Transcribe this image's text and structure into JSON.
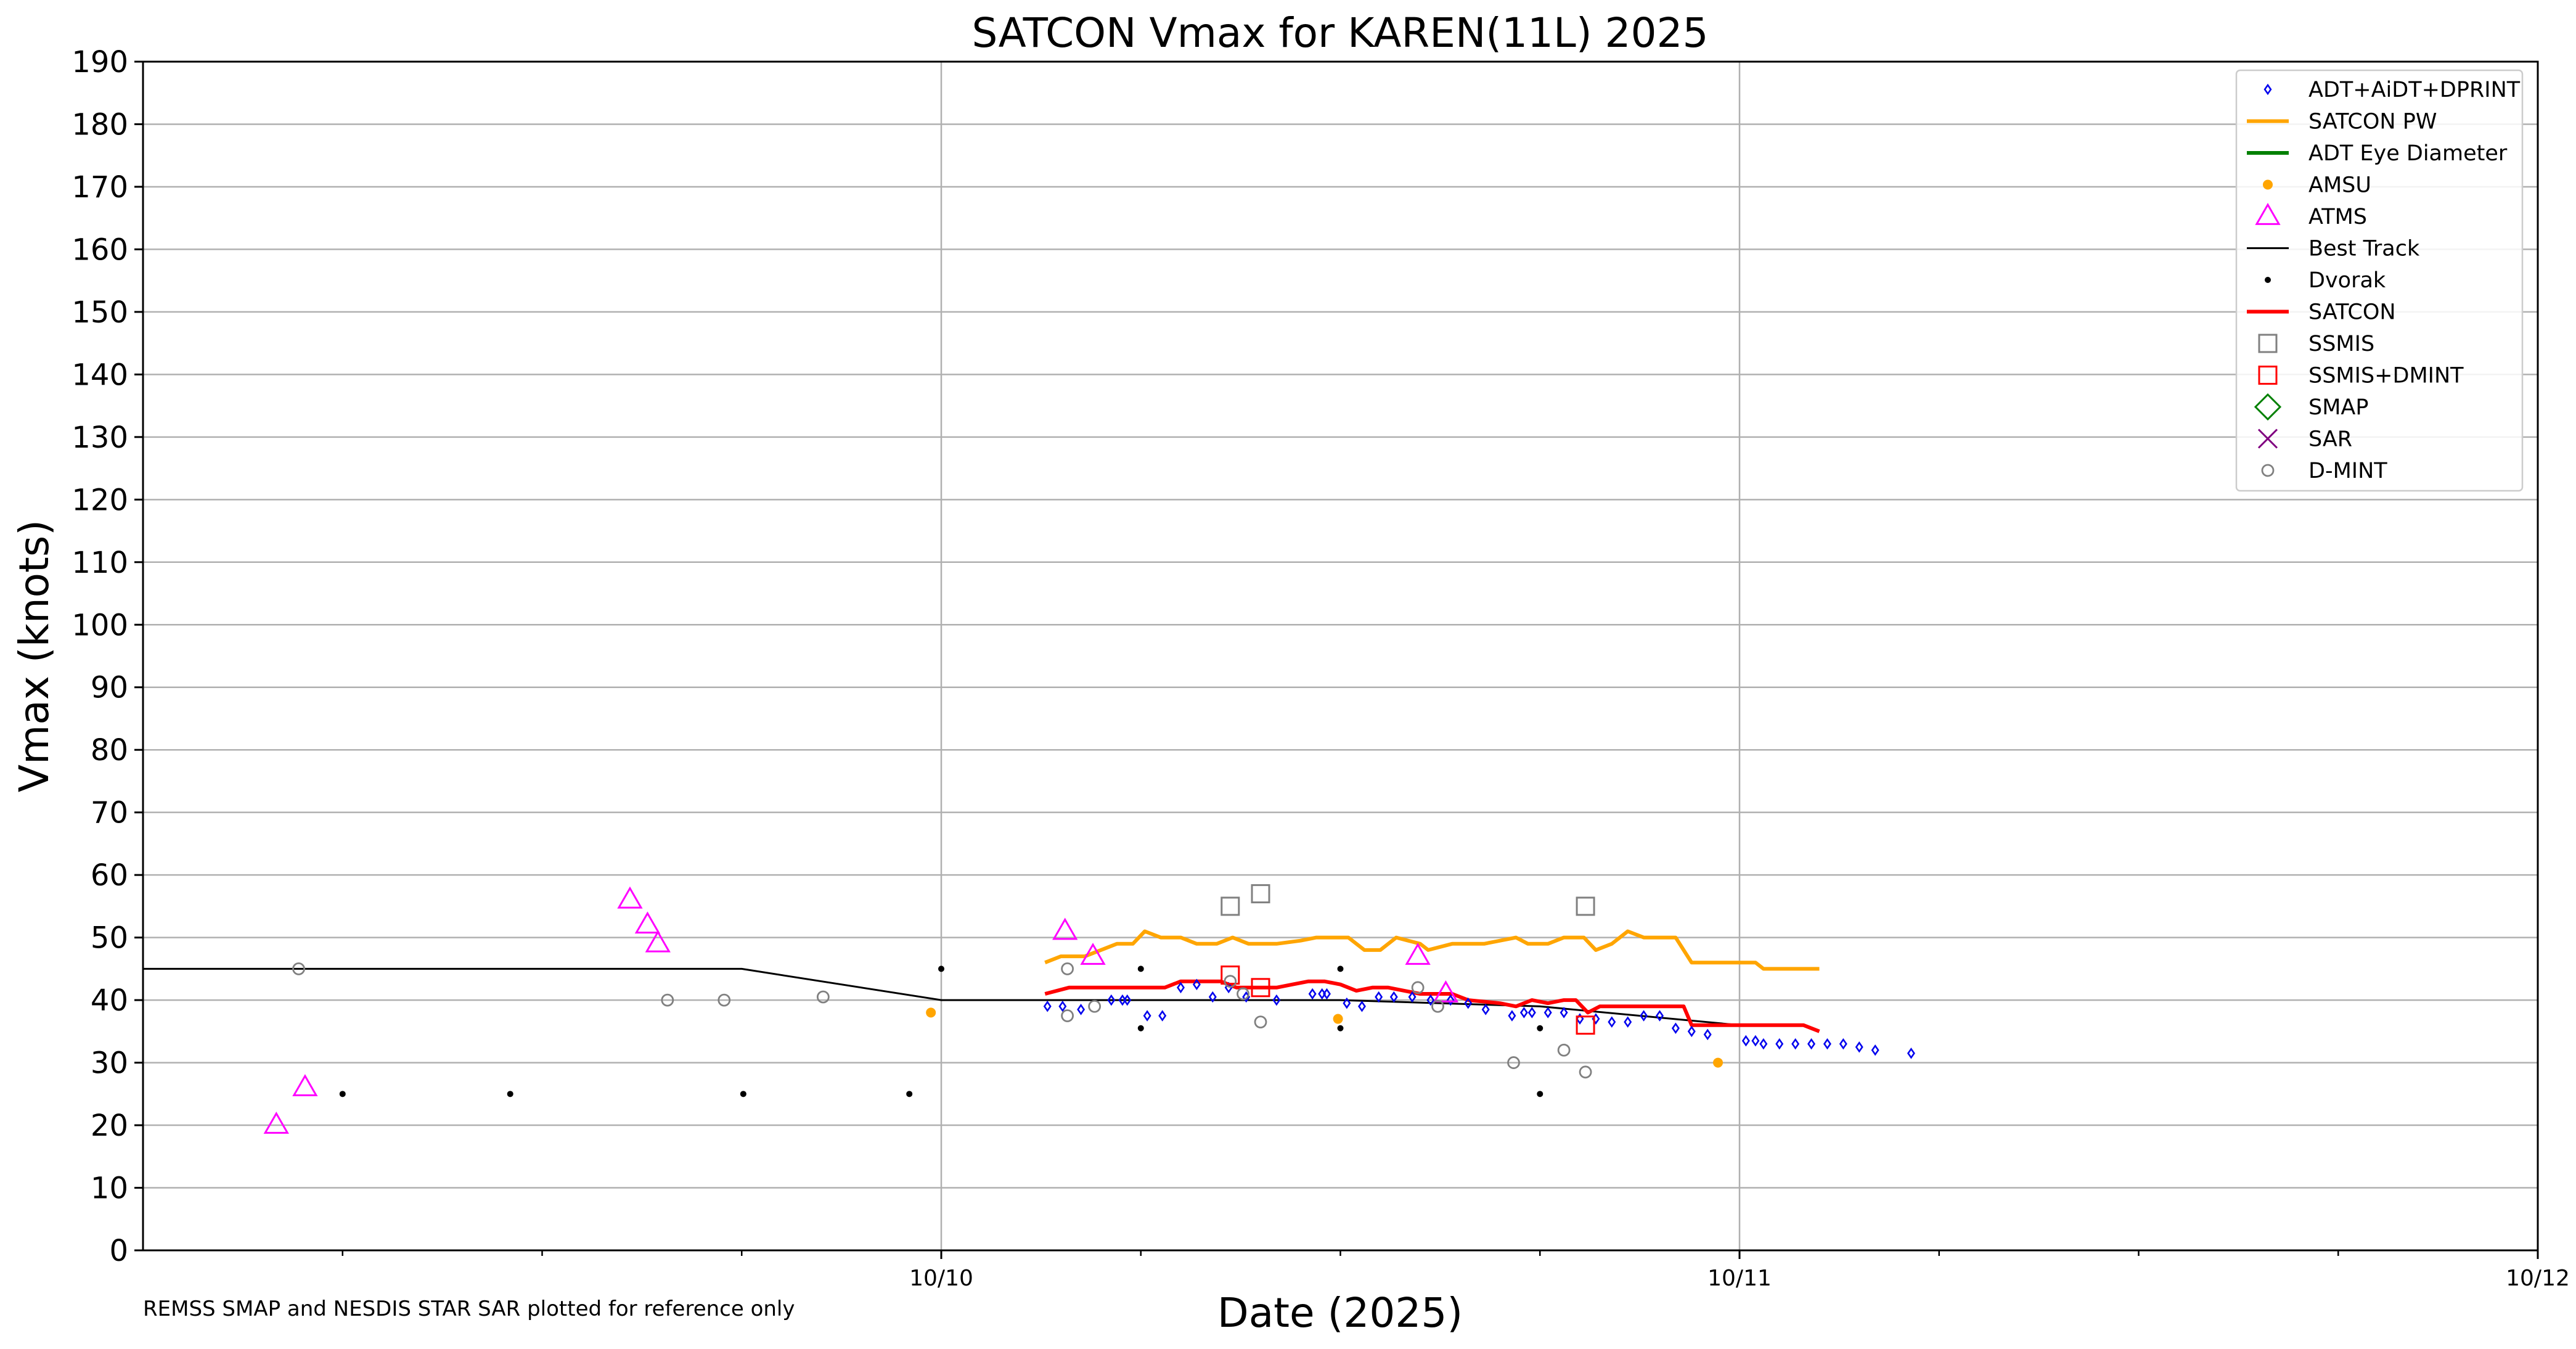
{
  "chart_data": {
    "type": "scatter",
    "title": "SATCON Vmax for KAREN(11L) 2025",
    "xlabel": "Date (2025)",
    "ylabel": "Vmax (knots)",
    "note": "REMSS SMAP and NESDIS STAR SAR plotted for reference only",
    "xlim": [
      -1.0,
      2.0
    ],
    "ylim": [
      0,
      190
    ],
    "yticks": [
      0,
      10,
      20,
      30,
      40,
      50,
      60,
      70,
      80,
      90,
      100,
      110,
      120,
      130,
      140,
      150,
      160,
      170,
      180,
      190
    ],
    "xticks": [
      {
        "x": 0,
        "label": "10/10"
      },
      {
        "x": 1,
        "label": "10/11"
      },
      {
        "x": 2,
        "label": "10/12"
      }
    ],
    "x_minor_ticks": [
      -0.75,
      -0.5,
      -0.25,
      0.25,
      0.5,
      0.75,
      1.25,
      1.5,
      1.75
    ],
    "x_units": "days relative to 10/10 00Z",
    "grid": true,
    "legend_position": "top-right",
    "series": [
      {
        "name": "ADT+AiDT+DPRINT",
        "kind": "diamond",
        "color": "#0000ee",
        "points": [
          [
            0.133,
            39
          ],
          [
            0.152,
            39
          ],
          [
            0.175,
            38.5
          ],
          [
            0.213,
            40
          ],
          [
            0.227,
            40
          ],
          [
            0.233,
            40
          ],
          [
            0.258,
            37.5
          ],
          [
            0.277,
            37.5
          ],
          [
            0.3,
            42
          ],
          [
            0.32,
            42.5
          ],
          [
            0.34,
            40.5
          ],
          [
            0.36,
            42
          ],
          [
            0.382,
            40.5
          ],
          [
            0.42,
            40
          ],
          [
            0.465,
            41
          ],
          [
            0.477,
            41
          ],
          [
            0.483,
            41
          ],
          [
            0.508,
            39.5
          ],
          [
            0.527,
            39
          ],
          [
            0.548,
            40.5
          ],
          [
            0.567,
            40.5
          ],
          [
            0.59,
            40.5
          ],
          [
            0.613,
            40
          ],
          [
            0.638,
            40
          ],
          [
            0.66,
            39.5
          ],
          [
            0.682,
            38.5
          ],
          [
            0.715,
            37.5
          ],
          [
            0.73,
            38
          ],
          [
            0.74,
            38
          ],
          [
            0.76,
            38
          ],
          [
            0.78,
            38
          ],
          [
            0.8,
            37
          ],
          [
            0.82,
            37
          ],
          [
            0.84,
            36.5
          ],
          [
            0.86,
            36.5
          ],
          [
            0.88,
            37.5
          ],
          [
            0.9,
            37.5
          ],
          [
            0.92,
            35.5
          ],
          [
            0.94,
            35
          ],
          [
            0.96,
            34.5
          ],
          [
            1.008,
            33.5
          ],
          [
            1.02,
            33.5
          ],
          [
            1.03,
            33
          ],
          [
            1.05,
            33
          ],
          [
            1.07,
            33
          ],
          [
            1.09,
            33
          ],
          [
            1.11,
            33
          ],
          [
            1.13,
            33
          ],
          [
            1.15,
            32.5
          ],
          [
            1.17,
            32
          ],
          [
            1.215,
            31.5
          ]
        ]
      },
      {
        "name": "SATCON PW",
        "kind": "line",
        "color": "#ffa500",
        "points": [
          [
            0.13,
            46
          ],
          [
            0.15,
            47
          ],
          [
            0.18,
            47
          ],
          [
            0.2,
            48
          ],
          [
            0.22,
            49
          ],
          [
            0.24,
            49
          ],
          [
            0.255,
            51
          ],
          [
            0.275,
            50
          ],
          [
            0.3,
            50
          ],
          [
            0.32,
            49
          ],
          [
            0.345,
            49
          ],
          [
            0.365,
            50
          ],
          [
            0.385,
            49
          ],
          [
            0.42,
            49
          ],
          [
            0.45,
            49.5
          ],
          [
            0.47,
            50
          ],
          [
            0.51,
            50
          ],
          [
            0.53,
            48
          ],
          [
            0.55,
            48
          ],
          [
            0.57,
            50
          ],
          [
            0.6,
            49
          ],
          [
            0.61,
            48
          ],
          [
            0.64,
            49
          ],
          [
            0.68,
            49
          ],
          [
            0.7,
            49.5
          ],
          [
            0.72,
            50
          ],
          [
            0.735,
            49
          ],
          [
            0.76,
            49
          ],
          [
            0.78,
            50
          ],
          [
            0.805,
            50
          ],
          [
            0.82,
            48
          ],
          [
            0.84,
            49
          ],
          [
            0.86,
            51
          ],
          [
            0.88,
            50
          ],
          [
            0.92,
            50
          ],
          [
            0.94,
            46
          ],
          [
            1.0,
            46
          ],
          [
            1.02,
            46
          ],
          [
            1.03,
            45
          ],
          [
            1.1,
            45
          ]
        ]
      },
      {
        "name": "ADT Eye Diameter",
        "kind": "line",
        "color": "#008000",
        "points": []
      },
      {
        "name": "AMSU",
        "kind": "dot",
        "color": "#ffa500",
        "points": [
          [
            -0.013,
            38
          ],
          [
            0.497,
            37
          ],
          [
            0.973,
            30
          ]
        ]
      },
      {
        "name": "ATMS",
        "kind": "triangle",
        "color": "#ff00ff",
        "points": [
          [
            -0.833,
            20
          ],
          [
            -0.797,
            26
          ],
          [
            -0.39,
            56
          ],
          [
            -0.368,
            52
          ],
          [
            -0.355,
            49
          ],
          [
            0.155,
            51
          ],
          [
            0.19,
            47
          ],
          [
            0.597,
            47
          ],
          [
            0.632,
            41
          ]
        ]
      },
      {
        "name": "Best Track",
        "kind": "line",
        "color": "#000000",
        "points": [
          [
            -1.0,
            45
          ],
          [
            -0.75,
            45
          ],
          [
            -0.5,
            45
          ],
          [
            -0.25,
            45
          ],
          [
            0.0,
            40
          ],
          [
            0.25,
            40
          ],
          [
            0.5,
            40
          ],
          [
            0.75,
            39
          ],
          [
            1.0,
            36
          ]
        ]
      },
      {
        "name": "Dvorak",
        "kind": "dot",
        "color": "#000000",
        "points": [
          [
            -0.75,
            25
          ],
          [
            -0.54,
            25
          ],
          [
            -0.248,
            25
          ],
          [
            -0.04,
            25
          ],
          [
            0.0,
            45
          ],
          [
            0.25,
            45
          ],
          [
            0.25,
            35.5
          ],
          [
            0.5,
            45
          ],
          [
            0.5,
            35.5
          ],
          [
            0.75,
            35.5
          ],
          [
            0.75,
            25
          ]
        ]
      },
      {
        "name": "SATCON",
        "kind": "line",
        "color": "#ff0000",
        "points": [
          [
            0.13,
            41
          ],
          [
            0.16,
            42
          ],
          [
            0.2,
            42
          ],
          [
            0.25,
            42
          ],
          [
            0.28,
            42
          ],
          [
            0.3,
            43
          ],
          [
            0.33,
            43
          ],
          [
            0.35,
            43
          ],
          [
            0.37,
            42
          ],
          [
            0.42,
            42
          ],
          [
            0.44,
            42.5
          ],
          [
            0.46,
            43
          ],
          [
            0.48,
            43
          ],
          [
            0.5,
            42.5
          ],
          [
            0.52,
            41.5
          ],
          [
            0.54,
            42
          ],
          [
            0.56,
            42
          ],
          [
            0.58,
            41.5
          ],
          [
            0.6,
            41
          ],
          [
            0.64,
            41
          ],
          [
            0.66,
            40
          ],
          [
            0.7,
            39.5
          ],
          [
            0.72,
            39
          ],
          [
            0.74,
            40
          ],
          [
            0.76,
            39.5
          ],
          [
            0.78,
            40
          ],
          [
            0.795,
            40
          ],
          [
            0.81,
            38
          ],
          [
            0.825,
            39
          ],
          [
            0.86,
            39
          ],
          [
            0.9,
            39
          ],
          [
            0.93,
            39
          ],
          [
            0.94,
            36
          ],
          [
            0.98,
            36
          ],
          [
            1.0,
            36
          ],
          [
            1.02,
            36
          ],
          [
            1.05,
            36
          ],
          [
            1.08,
            36
          ],
          [
            1.1,
            35
          ]
        ]
      },
      {
        "name": "SSMIS",
        "kind": "square",
        "color": "#808080",
        "points": [
          [
            0.362,
            55
          ],
          [
            0.4,
            57
          ],
          [
            0.807,
            55
          ]
        ]
      },
      {
        "name": "SSMIS+DMINT",
        "kind": "square",
        "color": "#ff0000",
        "points": [
          [
            0.362,
            44
          ],
          [
            0.4,
            42
          ],
          [
            0.807,
            36
          ]
        ]
      },
      {
        "name": "SMAP",
        "kind": "bigdiamond",
        "color": "#008000",
        "points": []
      },
      {
        "name": "SAR",
        "kind": "x",
        "color": "#800080",
        "points": []
      },
      {
        "name": "D-MINT",
        "kind": "circle",
        "color": "#808080",
        "points": [
          [
            -0.805,
            45
          ],
          [
            -0.343,
            40
          ],
          [
            -0.272,
            40
          ],
          [
            -0.148,
            40.5
          ],
          [
            0.158,
            37.5
          ],
          [
            0.158,
            45
          ],
          [
            0.192,
            39
          ],
          [
            0.362,
            43
          ],
          [
            0.378,
            41
          ],
          [
            0.4,
            36.5
          ],
          [
            0.597,
            42
          ],
          [
            0.622,
            39
          ],
          [
            0.717,
            30
          ],
          [
            0.78,
            32
          ],
          [
            0.807,
            28.5
          ]
        ]
      }
    ]
  }
}
